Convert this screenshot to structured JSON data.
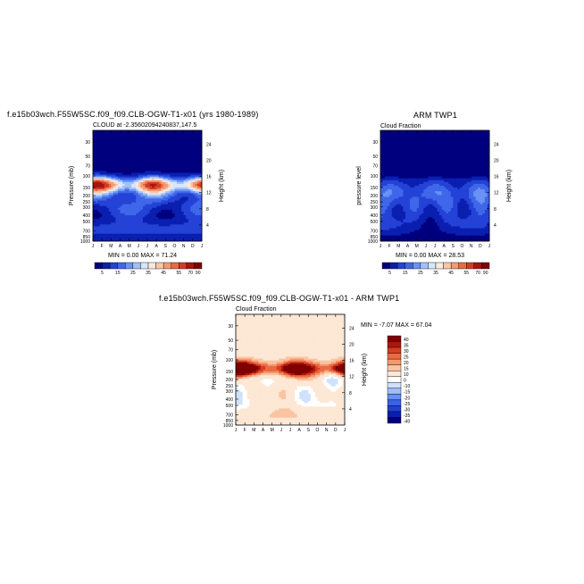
{
  "figure": {
    "main_title": "f.e15b03wch.F55W5SC.f09_f09.CLB-OGW-T1-x01 (yrs 1980-1989)",
    "diff_title": "f.e15b03wch.F55W5SC.f09_f09.CLB-OGW-T1-x01 - ARM TWP1"
  },
  "colors": {
    "seq_palette": [
      "#00007f",
      "#0a1fb0",
      "#2442d6",
      "#3f67ea",
      "#6a93f4",
      "#a2c0f8",
      "#d6e6fc",
      "#fbe9dc",
      "#f9c6a7",
      "#f39a72",
      "#e96a45",
      "#d43b23",
      "#a8140f",
      "#800000"
    ],
    "diff_palette": [
      "#00007f",
      "#0a1fb0",
      "#2040d0",
      "#3a62e8",
      "#6690f2",
      "#9ebcf6",
      "#cfe2fc",
      "#ffffff",
      "#fde7d5",
      "#fac4a2",
      "#f4996e",
      "#ea6a43",
      "#d63d22",
      "#ac160f",
      "#800000"
    ]
  },
  "chart_data": [
    {
      "type": "heatmap",
      "title": "f.e15b03wch.F55W5SC.f09_f09.CLB-OGW-T1-x01 (yrs 1980-1989)",
      "subtitle": "CLOUD at -2.35602094240837,147.5",
      "xlabel": "",
      "ylabel": "Pressure (mb)",
      "ylabel_right": "Height (km)",
      "x_ticks": [
        "J",
        "F",
        "M",
        "A",
        "M",
        "J",
        "J",
        "A",
        "S",
        "O",
        "N",
        "D",
        "J"
      ],
      "y_ticks": [
        "30",
        "50",
        "70",
        "100",
        "150",
        "200",
        "250",
        "300",
        "400",
        "500",
        "700",
        "850",
        "1000"
      ],
      "y_ticks_right": [
        "24",
        "20",
        "16",
        "12",
        "8",
        "4"
      ],
      "stats": "MIN =    0.00 MAX =  71.24",
      "min": 0.0,
      "max": 71.24,
      "colorbar_labels": [
        "5",
        "15",
        "25",
        "35",
        "45",
        "55",
        "70",
        "90"
      ],
      "features": [
        {
          "x": 0.5,
          "p": 150,
          "value": 65
        },
        {
          "x": 6.5,
          "p": 150,
          "value": 45
        },
        {
          "x": 11.5,
          "p": 150,
          "value": 60
        },
        {
          "x": 4.0,
          "p": 400,
          "value": 15
        }
      ]
    },
    {
      "type": "heatmap",
      "title": "ARM TWP1",
      "subtitle": "Cloud Fraction",
      "xlabel": "",
      "ylabel": "pressure level",
      "ylabel_right": "Height (km)",
      "x_ticks": [
        "J",
        "F",
        "M",
        "A",
        "M",
        "J",
        "J",
        "A",
        "S",
        "O",
        "N",
        "D",
        "J"
      ],
      "y_ticks": [
        "30",
        "50",
        "70",
        "100",
        "150",
        "200",
        "250",
        "300",
        "400",
        "500",
        "700",
        "850",
        "1000"
      ],
      "y_ticks_right": [
        "24",
        "20",
        "16",
        "12",
        "8",
        "4"
      ],
      "stats": "MIN =    0.00 MAX =  28.53",
      "min": 0.0,
      "max": 28.53,
      "colorbar_labels": [
        "5",
        "15",
        "25",
        "35",
        "45",
        "55",
        "70",
        "90"
      ],
      "features": [
        {
          "x": 6.0,
          "p": 200,
          "value": 20
        },
        {
          "x": 6.0,
          "p": 500,
          "value": 12
        }
      ]
    },
    {
      "type": "heatmap",
      "title": "f.e15b03wch.F55W5SC.f09_f09.CLB-OGW-T1-x01 - ARM TWP1",
      "subtitle": "Cloud Fraction",
      "xlabel": "",
      "ylabel": "Pressure (mb)",
      "ylabel_right": "Height (km)",
      "x_ticks": [
        "J",
        "F",
        "M",
        "A",
        "M",
        "J",
        "J",
        "A",
        "S",
        "O",
        "N",
        "D",
        "J"
      ],
      "y_ticks": [
        "30",
        "50",
        "70",
        "100",
        "150",
        "200",
        "250",
        "300",
        "400",
        "500",
        "700",
        "850",
        "1000"
      ],
      "y_ticks_right": [
        "24",
        "20",
        "16",
        "12",
        "8",
        "4"
      ],
      "stats": "MIN =  -7.07 MAX =  67.04",
      "min": -7.07,
      "max": 67.04,
      "colorbar_labels": [
        "40",
        "35",
        "30",
        "25",
        "20",
        "15",
        "10",
        "5",
        "0",
        "-5",
        "-10",
        "-15",
        "-20",
        "-25",
        "-30",
        "-35",
        "-40"
      ],
      "colorbar_displayed": [
        "40",
        "35",
        "30",
        "25",
        "20",
        "15",
        "10",
        "0",
        "-10",
        "-15",
        "-20",
        "-25",
        "-30",
        "-35",
        "-40"
      ],
      "features": [
        {
          "x": 0.5,
          "p": 150,
          "value": 45
        },
        {
          "x": 11.5,
          "p": 150,
          "value": 40
        },
        {
          "x": 5.5,
          "p": 300,
          "value": 20
        }
      ]
    }
  ]
}
